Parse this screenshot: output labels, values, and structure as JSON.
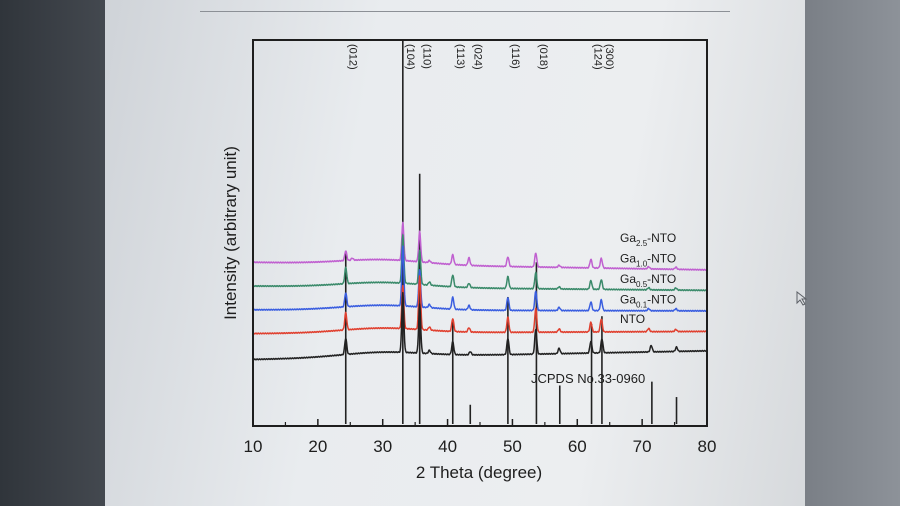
{
  "chart_data": {
    "type": "line",
    "xlabel": "2 Theta (degree)",
    "ylabel": "Intensity (arbitrary unit)",
    "xlim": [
      10,
      80
    ],
    "x_ticks": [
      "10",
      "20",
      "30",
      "40",
      "50",
      "60",
      "70",
      "80"
    ],
    "y_ticks_labeled": false,
    "grid": false,
    "colors": {
      "ga25": "#c060d0",
      "ga10": "#3a8a6a",
      "ga05": "#3a5ee0",
      "ga01": "#e0402f",
      "nto": "#222222",
      "ref": "#222222"
    },
    "peak_labels": [
      {
        "text": "(012)",
        "x": 24.3
      },
      {
        "text": "(104)",
        "x": 33.1
      },
      {
        "text": "(110)",
        "x": 35.7
      },
      {
        "text": "(113)",
        "x": 40.8
      },
      {
        "text": "(024)",
        "x": 43.5
      },
      {
        "text": "(116)",
        "x": 49.3
      },
      {
        "text": "(018)",
        "x": 53.6
      },
      {
        "text": "(124)",
        "x": 62.0
      },
      {
        "text": "(300)",
        "x": 63.8
      }
    ],
    "series": [
      {
        "key": "ga25",
        "name_base": "Ga",
        "name_sub": "2.5",
        "name_suffix": "-NTO",
        "baseline_left": 0.84,
        "baseline_right": 0.77,
        "peaks": [
          [
            24.3,
            0.09
          ],
          [
            25.3,
            0.02
          ],
          [
            33.1,
            0.35
          ],
          [
            35.7,
            0.28
          ],
          [
            37.2,
            0.02
          ],
          [
            40.8,
            0.09
          ],
          [
            43.3,
            0.07
          ],
          [
            49.3,
            0.09
          ],
          [
            53.6,
            0.13
          ],
          [
            57.2,
            0.02
          ],
          [
            62.1,
            0.08
          ],
          [
            63.7,
            0.09
          ],
          [
            71.0,
            0.02
          ],
          [
            75.2,
            0.02
          ]
        ]
      },
      {
        "key": "ga10",
        "name_base": "Ga",
        "name_sub": "1.0",
        "name_suffix": "-NTO",
        "baseline_left": 0.62,
        "baseline_right": 0.58,
        "peaks": [
          [
            24.3,
            0.15
          ],
          [
            33.1,
            0.45
          ],
          [
            35.7,
            0.32
          ],
          [
            37.2,
            0.03
          ],
          [
            40.8,
            0.11
          ],
          [
            43.3,
            0.04
          ],
          [
            49.3,
            0.11
          ],
          [
            53.6,
            0.15
          ],
          [
            57.2,
            0.02
          ],
          [
            62.1,
            0.08
          ],
          [
            63.7,
            0.09
          ],
          [
            71.0,
            0.02
          ],
          [
            75.2,
            0.02
          ]
        ]
      },
      {
        "key": "ga05",
        "name_base": "Ga",
        "name_sub": "0.5",
        "name_suffix": "-NTO",
        "baseline_left": 0.4,
        "baseline_right": 0.39,
        "peaks": [
          [
            24.3,
            0.13
          ],
          [
            33.1,
            0.55
          ],
          [
            35.7,
            0.34
          ],
          [
            37.2,
            0.03
          ],
          [
            40.8,
            0.11
          ],
          [
            43.3,
            0.04
          ],
          [
            49.3,
            0.12
          ],
          [
            53.6,
            0.18
          ],
          [
            57.2,
            0.03
          ],
          [
            62.1,
            0.08
          ],
          [
            63.7,
            0.1
          ],
          [
            71.0,
            0.02
          ],
          [
            75.2,
            0.02
          ]
        ]
      },
      {
        "key": "ga01",
        "name_base": "Ga",
        "name_sub": "0.1",
        "name_suffix": "-NTO",
        "baseline_left": 0.18,
        "baseline_right": 0.2,
        "peaks": [
          [
            24.3,
            0.16
          ],
          [
            33.1,
            0.4
          ],
          [
            35.7,
            0.5
          ],
          [
            37.2,
            0.03
          ],
          [
            40.8,
            0.12
          ],
          [
            43.3,
            0.04
          ],
          [
            49.3,
            0.14
          ],
          [
            53.6,
            0.22
          ],
          [
            57.2,
            0.03
          ],
          [
            62.1,
            0.09
          ],
          [
            63.7,
            0.12
          ],
          [
            71.0,
            0.03
          ],
          [
            75.2,
            0.02
          ]
        ]
      },
      {
        "key": "nto",
        "name_base": "NTO",
        "name_sub": "",
        "name_suffix": "",
        "baseline_left": -0.06,
        "baseline_right": 0.02,
        "peaks": [
          [
            24.3,
            0.15
          ],
          [
            33.1,
            0.55
          ],
          [
            35.7,
            0.45
          ],
          [
            37.2,
            0.03
          ],
          [
            40.8,
            0.12
          ],
          [
            43.5,
            0.03
          ],
          [
            49.3,
            0.15
          ],
          [
            53.6,
            0.23
          ],
          [
            57.2,
            0.05
          ],
          [
            62.1,
            0.11
          ],
          [
            63.8,
            0.13
          ],
          [
            71.4,
            0.06
          ],
          [
            75.3,
            0.04
          ]
        ]
      }
    ],
    "reference": {
      "name": "JCPDS No.33-0960",
      "sticks": [
        [
          24.3,
          0.45
        ],
        [
          33.1,
          1.0
        ],
        [
          35.7,
          0.65
        ],
        [
          40.8,
          0.27
        ],
        [
          43.5,
          0.05
        ],
        [
          49.3,
          0.33
        ],
        [
          53.7,
          0.42
        ],
        [
          57.3,
          0.1
        ],
        [
          62.2,
          0.26
        ],
        [
          63.8,
          0.28
        ],
        [
          71.5,
          0.11
        ],
        [
          75.3,
          0.07
        ]
      ]
    }
  }
}
